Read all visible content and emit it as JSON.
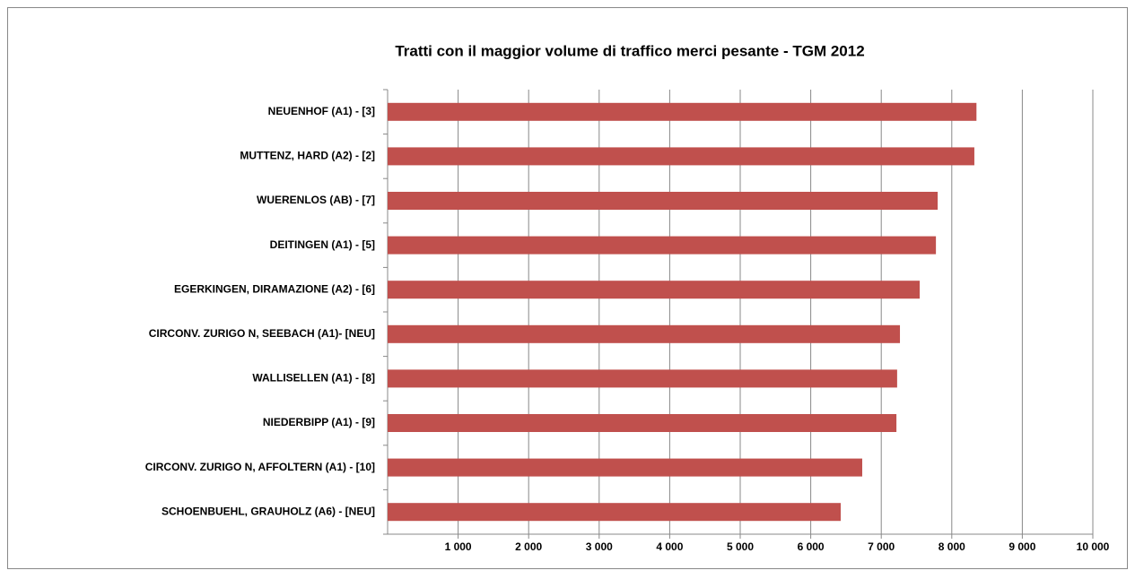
{
  "chart_data": {
    "type": "bar",
    "orientation": "horizontal",
    "title": "Tratti con il maggior volume di traffico merci pesante - TGM 2012",
    "categories": [
      "NEUENHOF (A1) - [3]",
      "MUTTENZ, HARD (A2) - [2]",
      "WUERENLOS (AB) - [7]",
      "DEITINGEN (A1) - [5]",
      "EGERKINGEN, DIRAMAZIONE (A2) - [6]",
      "CIRCONV. ZURIGO N, SEEBACH (A1)- [NEU]",
      "WALLISELLEN (A1) - [8]",
      "NIEDERBIPP (A1) - [9]",
      "CIRCONV. ZURIGO N, AFFOLTERN (A1) - [10]",
      "SCHOENBUEHL, GRAUHOLZ (A6) - [NEU]"
    ],
    "values": [
      8350,
      8320,
      7800,
      7775,
      7545,
      7265,
      7225,
      7215,
      6730,
      6425
    ],
    "color": "#c0504d",
    "xlim": [
      0,
      10000
    ],
    "xticks": [
      {
        "value": 1000,
        "label": "1 000"
      },
      {
        "value": 2000,
        "label": "2 000"
      },
      {
        "value": 3000,
        "label": "3 000"
      },
      {
        "value": 4000,
        "label": "4 000"
      },
      {
        "value": 5000,
        "label": "5 000"
      },
      {
        "value": 6000,
        "label": "6 000"
      },
      {
        "value": 7000,
        "label": "7 000"
      },
      {
        "value": 8000,
        "label": "8 000"
      },
      {
        "value": 9000,
        "label": "9 000"
      },
      {
        "value": 10000,
        "label": "10 000"
      }
    ],
    "grid": true
  }
}
